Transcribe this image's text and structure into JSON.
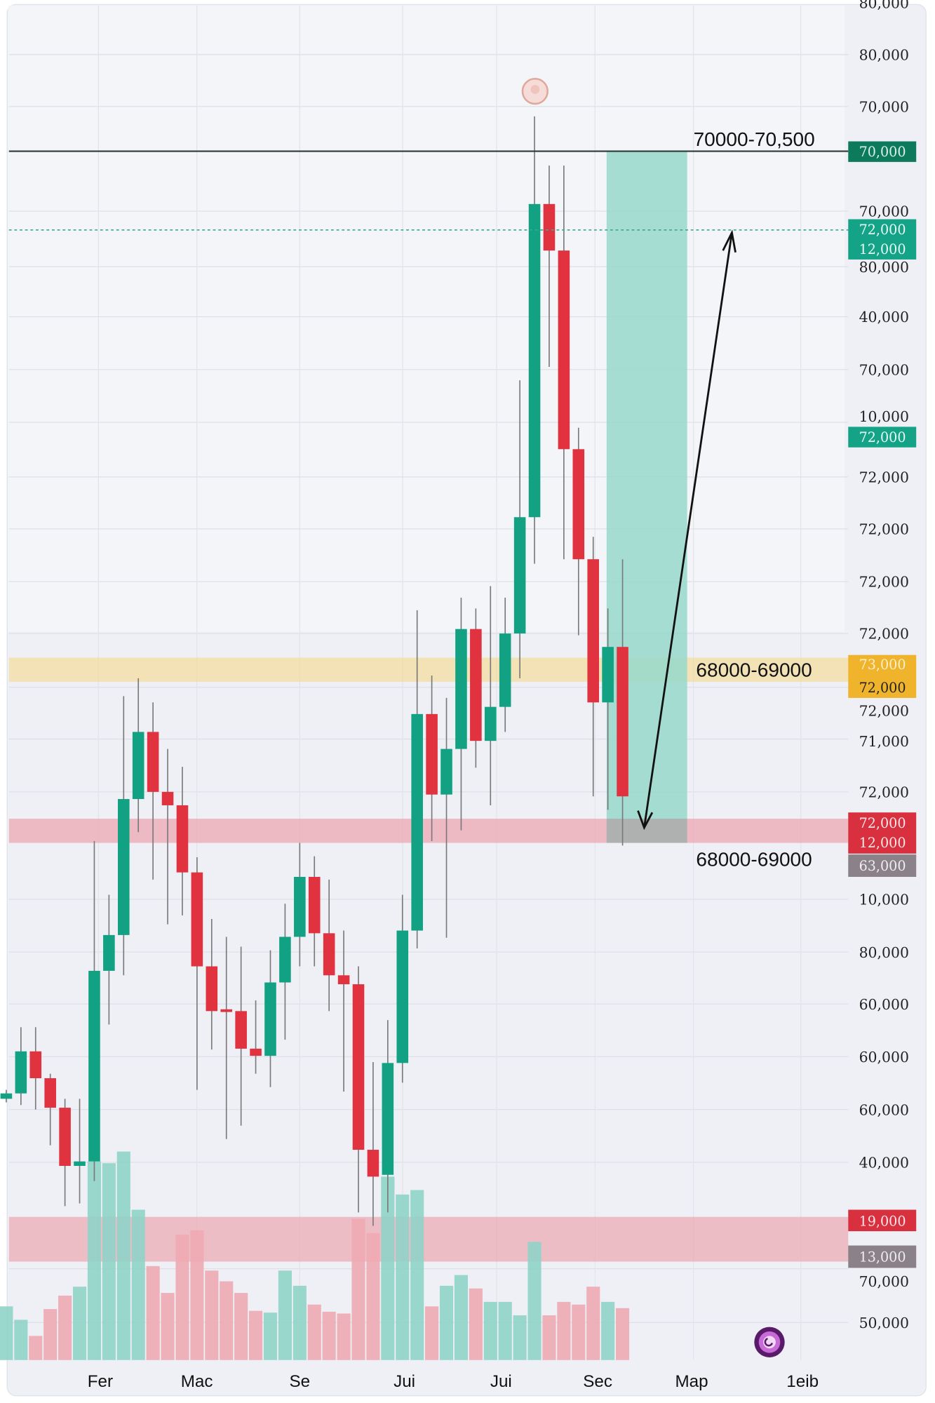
{
  "chart_data": {
    "type": "candlestick",
    "colors": {
      "up": "#12a283",
      "down": "#e0323f",
      "volume_up": "#8fd3c8",
      "volume_down": "#eeaab3",
      "background": "#eef0f6"
    },
    "y_axis_labels": [
      "80,000",
      "80,000",
      "70,000",
      "70,000",
      "80,000",
      "40,000",
      "70,000",
      "10,000",
      "72,000",
      "72,000",
      "72,000",
      "72,000",
      "72,000",
      "71,000",
      "72,000",
      "10,000",
      "80,000",
      "60,000",
      "60,000",
      "60,000",
      "40,000",
      "70,000",
      "50,000"
    ],
    "x_axis_labels": [
      "Fer",
      "Mac",
      "Se",
      "Jui",
      "Jui",
      "Sec",
      "Map",
      "1eib"
    ],
    "candles": [
      [
        57440,
        57560,
        57640,
        57360
      ],
      [
        57560,
        58500,
        59040,
        57300
      ],
      [
        58500,
        57900,
        59040,
        57200
      ],
      [
        57900,
        57240,
        58000,
        56400
      ],
      [
        57240,
        55940,
        57440,
        55040
      ],
      [
        55940,
        56040,
        57440,
        55100
      ],
      [
        56040,
        60300,
        63200,
        55600
      ],
      [
        60300,
        61100,
        62000,
        59100
      ],
      [
        61100,
        64140,
        66440,
        60200
      ],
      [
        64140,
        65640,
        66840,
        63400
      ],
      [
        65640,
        64300,
        66300,
        62340
      ],
      [
        64300,
        64000,
        65260,
        61340
      ],
      [
        64000,
        62500,
        64860,
        61540
      ],
      [
        62500,
        60400,
        62840,
        57640
      ],
      [
        60400,
        59400,
        61460,
        58540
      ],
      [
        59440,
        59400,
        61060,
        56540
      ],
      [
        59400,
        58560,
        60840,
        56840
      ],
      [
        58560,
        58400,
        59640,
        58000
      ],
      [
        58400,
        60040,
        60760,
        57700
      ],
      [
        60040,
        61060,
        61800,
        58760
      ],
      [
        61060,
        62400,
        63160,
        60400
      ],
      [
        62400,
        61140,
        62860,
        60400
      ],
      [
        61140,
        60200,
        62340,
        59400
      ],
      [
        60200,
        60000,
        61200,
        57600
      ],
      [
        60000,
        56300,
        60400,
        54900
      ],
      [
        56300,
        55700,
        58260,
        54600
      ],
      [
        55740,
        58240,
        59200,
        54900
      ],
      [
        58240,
        61200,
        62000,
        57800
      ],
      [
        61200,
        66040,
        68360,
        60800
      ],
      [
        66040,
        64240,
        66900,
        63200
      ],
      [
        64240,
        65260,
        66400,
        61040
      ],
      [
        65260,
        67940,
        68640,
        63440
      ],
      [
        67940,
        65440,
        68400,
        64840
      ],
      [
        65440,
        66200,
        68900,
        64000
      ],
      [
        66200,
        67840,
        68640,
        65640
      ],
      [
        67840,
        70440,
        73500,
        66840
      ],
      [
        70440,
        77440,
        79400,
        69400
      ],
      [
        77440,
        76400,
        78300,
        73800
      ],
      [
        76400,
        71960,
        78300,
        69500
      ],
      [
        71960,
        69500,
        72440,
        67800
      ],
      [
        69500,
        66300,
        70000,
        64200
      ],
      [
        66300,
        67540,
        68400,
        63900
      ],
      [
        67540,
        64200,
        69500,
        63100
      ]
    ],
    "candle_format": [
      "open",
      "close",
      "high",
      "low"
    ],
    "volume_relative": [
      60,
      45,
      27,
      57,
      72,
      82,
      222,
      220,
      233,
      168,
      105,
      75,
      140,
      145,
      100,
      88,
      75,
      55,
      53,
      100,
      83,
      62,
      54,
      52,
      158,
      142,
      205,
      185,
      190,
      60,
      83,
      95,
      80,
      65,
      65,
      50,
      132,
      50,
      65,
      62,
      82,
      65,
      58
    ],
    "volume_up": [
      1,
      1,
      0,
      0,
      0,
      1,
      1,
      1,
      1,
      1,
      0,
      0,
      0,
      0,
      0,
      0,
      0,
      0,
      1,
      1,
      1,
      0,
      0,
      0,
      0,
      0,
      1,
      1,
      1,
      0,
      1,
      1,
      0,
      1,
      1,
      1,
      1,
      0,
      0,
      0,
      0,
      1,
      0
    ],
    "ylim": [
      50640,
      82000
    ],
    "grid": true,
    "annotations": {
      "resistance_label": "70000-70,500",
      "resistance_price": 78620,
      "target_price": 76860,
      "zone_upper_label": "68000-69000",
      "zone_upper": [
        66760,
        67300
      ],
      "zone_lower_label": "68000-69000",
      "zone_lower": [
        63160,
        63700
      ],
      "zone_bottom": [
        53800,
        54800
      ],
      "arrow": "double-headed, from lower zone up to target line"
    },
    "price_tags": [
      {
        "lines": [
          "70,000"
        ],
        "color": "#0e7a5c"
      },
      {
        "lines": [
          "72,000",
          "12,000"
        ],
        "color": "#14a387"
      },
      {
        "lines": [
          "72,000"
        ],
        "color": "#14a387"
      },
      {
        "lines": [
          "73,000",
          "72,000"
        ],
        "color": "#efb32c"
      },
      {
        "lines": [
          "72,000",
          "12,000"
        ],
        "color": "#d8303e"
      },
      {
        "lines": [
          "63,000"
        ],
        "color": "#8a8189"
      },
      {
        "lines": [
          "19,000"
        ],
        "color": "#d8303e"
      },
      {
        "lines": [
          "13,000"
        ],
        "color": "#8a8189"
      }
    ]
  }
}
